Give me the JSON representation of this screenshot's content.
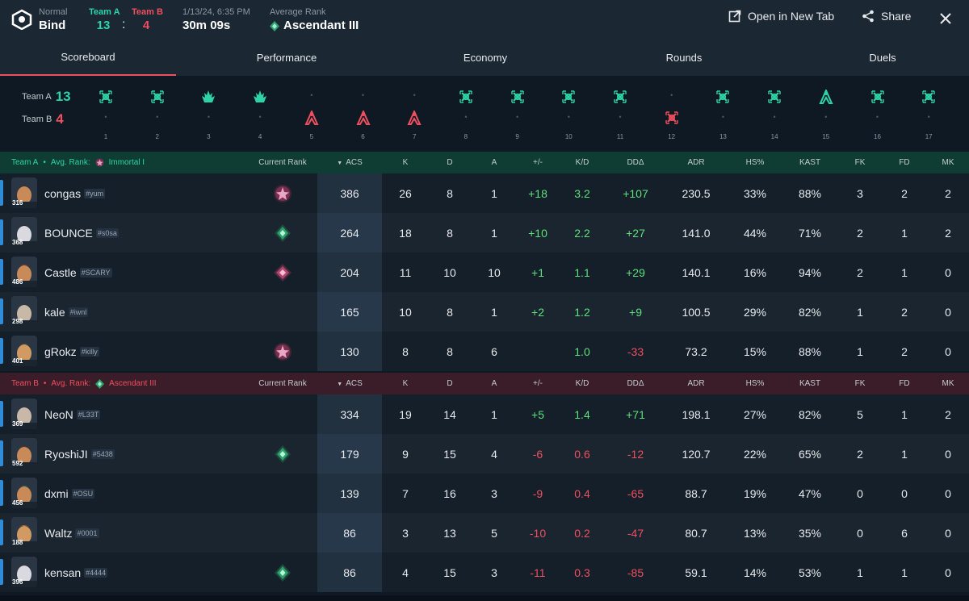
{
  "header": {
    "mode": "Normal",
    "map": "Bind",
    "teamA_label": "Team A",
    "teamB_label": "Team B",
    "teamA_score": "13",
    "separator": ":",
    "teamB_score": "4",
    "datetime": "1/13/24, 6:35 PM",
    "duration": "30m 09s",
    "avg_rank_label": "Average Rank",
    "avg_rank": "Ascendant III",
    "open_new_tab": "Open in New Tab",
    "share": "Share"
  },
  "tabs": [
    {
      "label": "Scoreboard",
      "active": true
    },
    {
      "label": "Performance"
    },
    {
      "label": "Economy"
    },
    {
      "label": "Rounds"
    },
    {
      "label": "Duels"
    }
  ],
  "timeline": {
    "teamA_label": "Team A",
    "teamA_score": "13",
    "teamB_label": "Team B",
    "teamB_score": "4",
    "rounds": [
      {
        "n": "1",
        "winner": "A",
        "type": "elim"
      },
      {
        "n": "2",
        "winner": "A",
        "type": "elim"
      },
      {
        "n": "3",
        "winner": "A",
        "type": "spike"
      },
      {
        "n": "4",
        "winner": "A",
        "type": "spike"
      },
      {
        "n": "5",
        "winner": "B",
        "type": "defuse"
      },
      {
        "n": "6",
        "winner": "B",
        "type": "defuse"
      },
      {
        "n": "7",
        "winner": "B",
        "type": "defuse"
      },
      {
        "n": "8",
        "winner": "A",
        "type": "elim"
      },
      {
        "n": "9",
        "winner": "A",
        "type": "elim"
      },
      {
        "n": "10",
        "winner": "A",
        "type": "elim"
      },
      {
        "n": "11",
        "winner": "A",
        "type": "elim"
      },
      {
        "n": "12",
        "winner": "B",
        "type": "elim"
      },
      {
        "n": "13",
        "winner": "A",
        "type": "elim"
      },
      {
        "n": "14",
        "winner": "A",
        "type": "elim"
      },
      {
        "n": "15",
        "winner": "A",
        "type": "defuse"
      },
      {
        "n": "16",
        "winner": "A",
        "type": "elim"
      },
      {
        "n": "17",
        "winner": "A",
        "type": "elim"
      }
    ]
  },
  "columns": [
    "Current Rank",
    "ACS",
    "K",
    "D",
    "A",
    "+/-",
    "K/D",
    "DDΔ",
    "ADR",
    "HS%",
    "KAST",
    "FK",
    "FD",
    "MK"
  ],
  "teamA": {
    "name": "Team A",
    "avg_label": "Avg. Rank:",
    "avg_rank": "Immortal I",
    "players": [
      {
        "name": "congas",
        "tag": "#yum",
        "level": "316",
        "rank": "immortal",
        "acs": "386",
        "k": "26",
        "d": "8",
        "a": "1",
        "pm": "+18",
        "kd": "3.2",
        "dd": "+107",
        "adr": "230.5",
        "hs": "33%",
        "kast": "88%",
        "fk": "3",
        "fd": "2",
        "mk": "2",
        "skin": "#c98a5a",
        "hair": "#3b2a1c"
      },
      {
        "name": "BOUNCE",
        "tag": "#s0sa",
        "level": "368",
        "rank": "ascendant",
        "acs": "264",
        "k": "18",
        "d": "8",
        "a": "1",
        "pm": "+10",
        "kd": "2.2",
        "dd": "+27",
        "adr": "141.0",
        "hs": "44%",
        "kast": "71%",
        "fk": "2",
        "fd": "1",
        "mk": "2",
        "skin": "#d9d9df",
        "hair": "#2a2a33"
      },
      {
        "name": "Castle",
        "tag": "#SCARY",
        "level": "486",
        "rank": "immortal2",
        "acs": "204",
        "k": "11",
        "d": "10",
        "a": "10",
        "pm": "+1",
        "kd": "1.1",
        "dd": "+29",
        "adr": "140.1",
        "hs": "16%",
        "kast": "94%",
        "fk": "2",
        "fd": "1",
        "mk": "0",
        "skin": "#c98a5a",
        "hair": "#a03d1e"
      },
      {
        "name": "kale",
        "tag": "#iwnl",
        "level": "298",
        "rank": "",
        "acs": "165",
        "k": "10",
        "d": "8",
        "a": "1",
        "pm": "+2",
        "kd": "1.2",
        "dd": "+9",
        "adr": "100.5",
        "hs": "29%",
        "kast": "82%",
        "fk": "1",
        "fd": "2",
        "mk": "0",
        "skin": "#c8b8a8",
        "hair": "#3a3a3a"
      },
      {
        "name": "gRokz",
        "tag": "#killy",
        "level": "401",
        "rank": "immortal",
        "acs": "130",
        "k": "8",
        "d": "8",
        "a": "6",
        "pm": "",
        "kd": "1.0",
        "dd": "-33",
        "adr": "73.2",
        "hs": "15%",
        "kast": "88%",
        "fk": "1",
        "fd": "2",
        "mk": "0",
        "skin": "#d19a62",
        "hair": "#6a4a22"
      }
    ]
  },
  "teamB": {
    "name": "Team B",
    "avg_label": "Avg. Rank:",
    "avg_rank": "Ascendant III",
    "players": [
      {
        "name": "NeoN",
        "tag": "#L33T",
        "level": "369",
        "rank": "",
        "acs": "334",
        "k": "19",
        "d": "14",
        "a": "1",
        "pm": "+5",
        "kd": "1.4",
        "dd": "+71",
        "adr": "198.1",
        "hs": "27%",
        "kast": "82%",
        "fk": "5",
        "fd": "1",
        "mk": "2",
        "skin": "#c8b8a8",
        "hair": "#3a3a3a"
      },
      {
        "name": "RyoshiJI",
        "tag": "#5438",
        "level": "592",
        "rank": "ascendant",
        "acs": "179",
        "k": "9",
        "d": "15",
        "a": "4",
        "pm": "-6",
        "kd": "0.6",
        "dd": "-12",
        "adr": "120.7",
        "hs": "22%",
        "kast": "65%",
        "fk": "2",
        "fd": "1",
        "mk": "0",
        "skin": "#c98a5a",
        "hair": "#7a2a1a"
      },
      {
        "name": "dxmi",
        "tag": "#OSU",
        "level": "456",
        "rank": "",
        "acs": "139",
        "k": "7",
        "d": "16",
        "a": "3",
        "pm": "-9",
        "kd": "0.4",
        "dd": "-65",
        "adr": "88.7",
        "hs": "19%",
        "kast": "47%",
        "fk": "0",
        "fd": "0",
        "mk": "0",
        "skin": "#c98a5a",
        "hair": "#3b6a3a"
      },
      {
        "name": "Waltz",
        "tag": "#0001",
        "level": "188",
        "rank": "",
        "acs": "86",
        "k": "3",
        "d": "13",
        "a": "5",
        "pm": "-10",
        "kd": "0.2",
        "dd": "-47",
        "adr": "80.7",
        "hs": "13%",
        "kast": "35%",
        "fk": "0",
        "fd": "6",
        "mk": "0",
        "skin": "#d19a62",
        "hair": "#c0682a"
      },
      {
        "name": "kensan",
        "tag": "#4444",
        "level": "396",
        "rank": "ascendant",
        "acs": "86",
        "k": "4",
        "d": "15",
        "a": "3",
        "pm": "-11",
        "kd": "0.3",
        "dd": "-85",
        "adr": "59.1",
        "hs": "14%",
        "kast": "53%",
        "fk": "1",
        "fd": "1",
        "mk": "0",
        "skin": "#d9d9df",
        "hair": "#2a2a33"
      }
    ]
  },
  "colors": {
    "teamA": "#2ed4a8",
    "teamB": "#ef4f5f",
    "positive": "#5ee07a",
    "negative": "#ef4f5f",
    "accent_bar": "#2f8cd8"
  }
}
